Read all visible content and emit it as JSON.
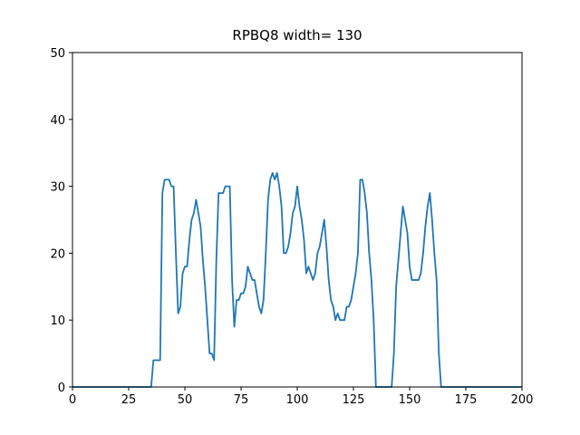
{
  "chart_data": {
    "type": "line",
    "title": "RPBQ8 width= 130",
    "x": [
      0,
      35,
      36,
      37,
      38,
      39,
      40,
      41,
      42,
      43,
      44,
      45,
      46,
      47,
      48,
      49,
      50,
      51,
      52,
      53,
      54,
      55,
      56,
      57,
      58,
      59,
      60,
      61,
      62,
      63,
      64,
      65,
      66,
      67,
      68,
      69,
      70,
      71,
      72,
      73,
      74,
      75,
      76,
      77,
      78,
      79,
      80,
      81,
      82,
      83,
      84,
      85,
      86,
      87,
      88,
      89,
      90,
      91,
      92,
      93,
      94,
      95,
      96,
      97,
      98,
      99,
      100,
      101,
      102,
      103,
      104,
      105,
      106,
      107,
      108,
      109,
      110,
      111,
      112,
      113,
      114,
      115,
      116,
      117,
      118,
      119,
      120,
      121,
      122,
      123,
      124,
      125,
      126,
      127,
      128,
      129,
      130,
      131,
      132,
      133,
      134,
      135,
      142,
      143,
      144,
      145,
      146,
      147,
      148,
      149,
      150,
      151,
      152,
      153,
      154,
      155,
      156,
      157,
      158,
      159,
      160,
      161,
      162,
      163,
      164,
      200
    ],
    "series": [
      {
        "color": "#1f77b4",
        "values": [
          0,
          0,
          4,
          4,
          4,
          4,
          29,
          31,
          31,
          31,
          30,
          30,
          20,
          11,
          12,
          17,
          18,
          18,
          22,
          25,
          26,
          28,
          26,
          24,
          19,
          15,
          10,
          5,
          5,
          4,
          19,
          29,
          29,
          29,
          30,
          30,
          30,
          16,
          9,
          13,
          13,
          14,
          14,
          15,
          18,
          17,
          16,
          16,
          14,
          12,
          11,
          13,
          20,
          28,
          31,
          32,
          31,
          32,
          30,
          27,
          20,
          20,
          21,
          23,
          26,
          27,
          30,
          27,
          25,
          22,
          17,
          18,
          17,
          16,
          17,
          20,
          21,
          23,
          25,
          21,
          16,
          13,
          12,
          10,
          11,
          10,
          10,
          10,
          12,
          12,
          13,
          15,
          17,
          20,
          31,
          31,
          29,
          26,
          20,
          16,
          10,
          0,
          0,
          5,
          15,
          19,
          23,
          27,
          25,
          23,
          18,
          16,
          16,
          16,
          16,
          17,
          20,
          24,
          27,
          29,
          25,
          20,
          16,
          5,
          0,
          0
        ]
      }
    ],
    "xlim": [
      0,
      200
    ],
    "xticks": [
      0,
      25,
      50,
      75,
      100,
      125,
      150,
      175,
      200
    ],
    "ylim": [
      0,
      50
    ],
    "yticks": [
      0,
      10,
      20,
      30,
      40,
      50
    ]
  }
}
